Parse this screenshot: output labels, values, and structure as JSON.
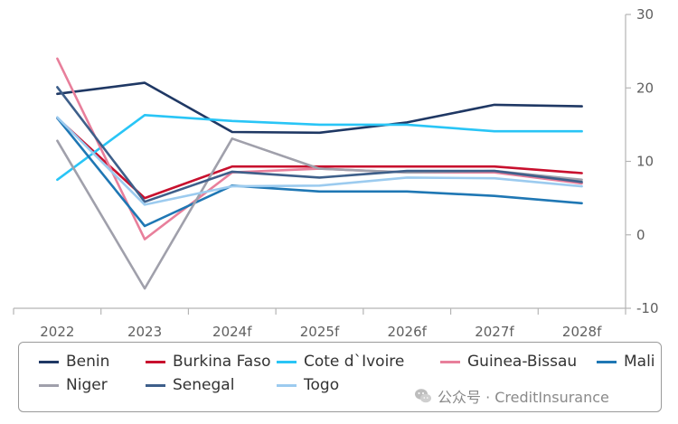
{
  "chart_data": {
    "type": "line",
    "categories": [
      "2022",
      "2023",
      "2024f",
      "2025f",
      "2026f",
      "2027f",
      "2028f"
    ],
    "series": [
      {
        "name": "Benin",
        "color": "#1f3864",
        "values": [
          19.2,
          20.7,
          14.0,
          13.9,
          15.3,
          17.7,
          17.5
        ]
      },
      {
        "name": "Burkina Faso",
        "color": "#c8102e",
        "values": [
          15.9,
          5.0,
          9.3,
          9.3,
          9.3,
          9.3,
          8.4
        ]
      },
      {
        "name": "Cote d`Ivoire",
        "color": "#29c5f6",
        "values": [
          7.5,
          16.3,
          15.5,
          15.0,
          15.0,
          14.1,
          14.1
        ]
      },
      {
        "name": "Guinea-Bissau",
        "color": "#e87f9b",
        "values": [
          24.0,
          -0.6,
          8.5,
          9.0,
          8.5,
          8.5,
          7.0
        ]
      },
      {
        "name": "Mali",
        "color": "#1f77b4",
        "values": [
          15.9,
          1.2,
          6.7,
          5.9,
          5.9,
          5.3,
          4.3
        ]
      },
      {
        "name": "Niger",
        "color": "#a0a0ab",
        "values": [
          12.8,
          -7.3,
          13.1,
          9.0,
          8.5,
          8.7,
          7.5
        ]
      },
      {
        "name": "Senegal",
        "color": "#3e5f8a",
        "values": [
          20.1,
          4.5,
          8.6,
          7.8,
          8.7,
          8.7,
          7.2
        ]
      },
      {
        "name": "Togo",
        "color": "#9ccbef",
        "values": [
          16.0,
          4.1,
          6.6,
          6.7,
          7.8,
          7.7,
          6.6
        ]
      }
    ],
    "yaxis": {
      "position": "right",
      "ylim": [
        -10,
        30
      ],
      "ticks": [
        30,
        20,
        10,
        0,
        -10
      ]
    },
    "grid": false,
    "legend": "bottom"
  },
  "watermark": {
    "text": "公众号 · CreditInsurance",
    "icon": "wechat-icon"
  }
}
